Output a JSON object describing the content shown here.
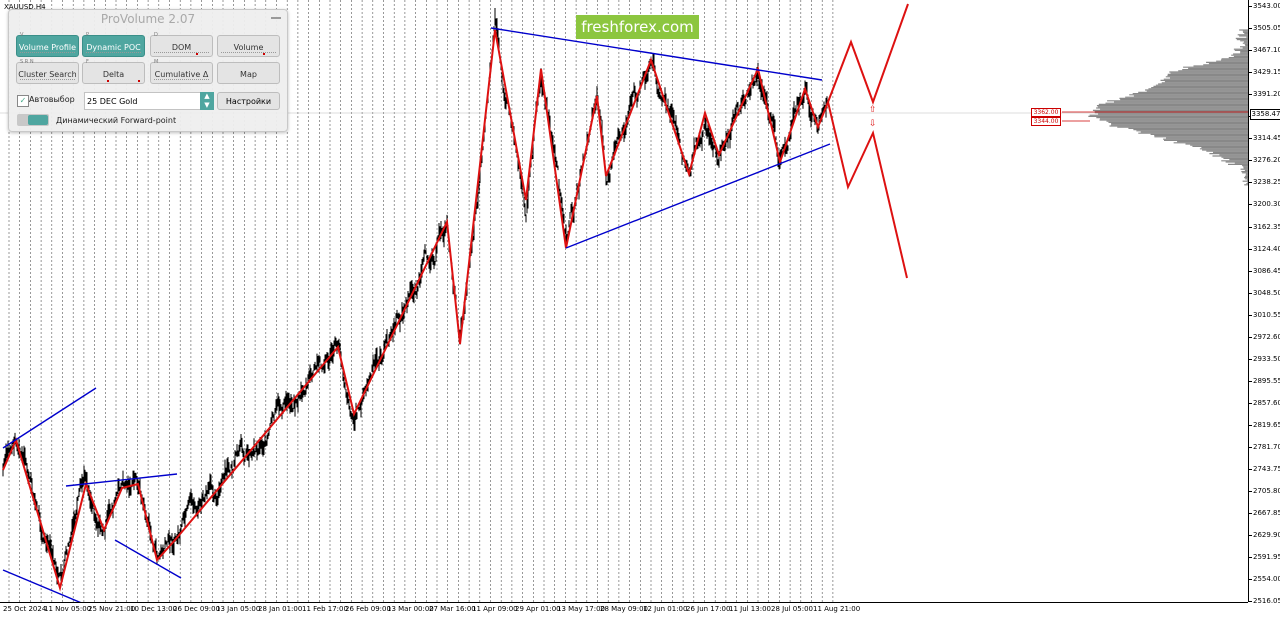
{
  "chart": {
    "symbol": "XAUUSD,H4",
    "current_price": "3358.47",
    "price_ticks": [
      "3543.00",
      "3505.05",
      "3467.10",
      "3429.15",
      "3391.20",
      "3353.25",
      "3314.45",
      "3276.20",
      "3238.25",
      "3200.30",
      "3162.35",
      "3124.40",
      "3086.45",
      "3048.50",
      "3010.55",
      "2972.60",
      "2933.50",
      "2895.55",
      "2857.60",
      "2819.65",
      "2781.70",
      "2743.75",
      "2705.80",
      "2667.85",
      "2629.90",
      "2591.95",
      "2554.00",
      "2516.05"
    ],
    "time_ticks": [
      "25 Oct 2024",
      "11 Nov 05:00",
      "25 Nov 21:00",
      "10 Dec 13:00",
      "26 Dec 09:00",
      "13 Jan 05:00",
      "28 Jan 01:00",
      "11 Feb 17:00",
      "26 Feb 09:00",
      "13 Mar 00:00",
      "27 Mar 16:00",
      "11 Apr 09:00",
      "29 Apr 01:00",
      "13 May 17:00",
      "28 May 09:00",
      "12 Jun 01:00",
      "26 Jun 17:00",
      "11 Jul 13:00",
      "28 Jul 05:00",
      "11 Aug 21:00"
    ],
    "poc_labels": [
      "3362.00",
      "3344.00"
    ],
    "watermark": "freshforex.com",
    "colors": {
      "candles": "#000000",
      "zigzag": "#dd1111",
      "trendlines": "#0000cc",
      "forecast": "#dd1111",
      "volume_profile": "#888888"
    }
  },
  "panel": {
    "title": "ProVolume 2.07",
    "buttons": [
      {
        "label": "Volume Profile",
        "hotkey": "V",
        "active": true
      },
      {
        "label": "Dynamic POC",
        "hotkey": "P",
        "active": true
      },
      {
        "label": "DOM",
        "hotkey": "D",
        "active": false
      },
      {
        "label": "Volume",
        "hotkey": "",
        "active": false
      },
      {
        "label": "Cluster Search",
        "hotkey": "S R N",
        "active": false
      },
      {
        "label": "Delta",
        "hotkey": "F",
        "active": false
      },
      {
        "label": "Cumulative Δ",
        "hotkey": "M",
        "active": false
      },
      {
        "label": "Map",
        "hotkey": "",
        "active": false
      }
    ],
    "auto_select_label": "Автовыбор",
    "symbol_value": "25 DEC Gold",
    "settings_label": "Настройки",
    "forward_point_label": "Динамический Forward-point"
  }
}
